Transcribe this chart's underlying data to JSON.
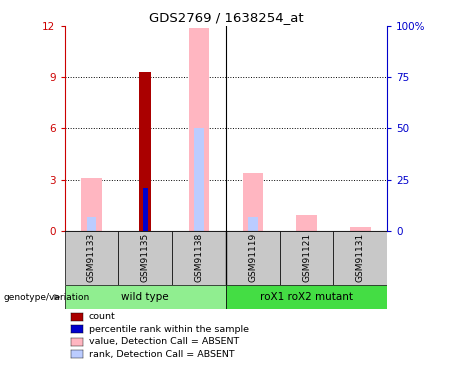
{
  "title": "GDS2769 / 1638254_at",
  "samples": [
    "GSM91133",
    "GSM91135",
    "GSM91138",
    "GSM91119",
    "GSM91121",
    "GSM91131"
  ],
  "count_values": [
    0,
    9.3,
    0,
    0,
    0,
    0
  ],
  "percentile_rank_values": [
    0,
    2.5,
    0,
    0,
    0,
    0
  ],
  "absent_value_values": [
    3.1,
    0,
    11.9,
    3.4,
    0.9,
    0.2
  ],
  "absent_rank_values": [
    0.8,
    0,
    6.0,
    0.8,
    0,
    0
  ],
  "ylim_left": [
    0,
    12
  ],
  "ylim_right": [
    0,
    100
  ],
  "yticks_left": [
    0,
    3,
    6,
    9,
    12
  ],
  "ytick_labels_left": [
    "0",
    "3",
    "6",
    "9",
    "12"
  ],
  "ytick_labels_right": [
    "0",
    "25",
    "50",
    "75",
    "100%"
  ],
  "left_axis_color": "#CC0000",
  "right_axis_color": "#0000CC",
  "count_color": "#AA0000",
  "percentile_color": "#0000CC",
  "absent_value_color": "#FFB6C1",
  "absent_rank_color": "#BBCCFF",
  "wt_color": "#90EE90",
  "mut_color": "#44DD44",
  "legend_items": [
    {
      "color": "#AA0000",
      "label": "count"
    },
    {
      "color": "#0000CC",
      "label": "percentile rank within the sample"
    },
    {
      "color": "#FFB6C1",
      "label": "value, Detection Call = ABSENT"
    },
    {
      "color": "#BBCCFF",
      "label": "rank, Detection Call = ABSENT"
    }
  ]
}
